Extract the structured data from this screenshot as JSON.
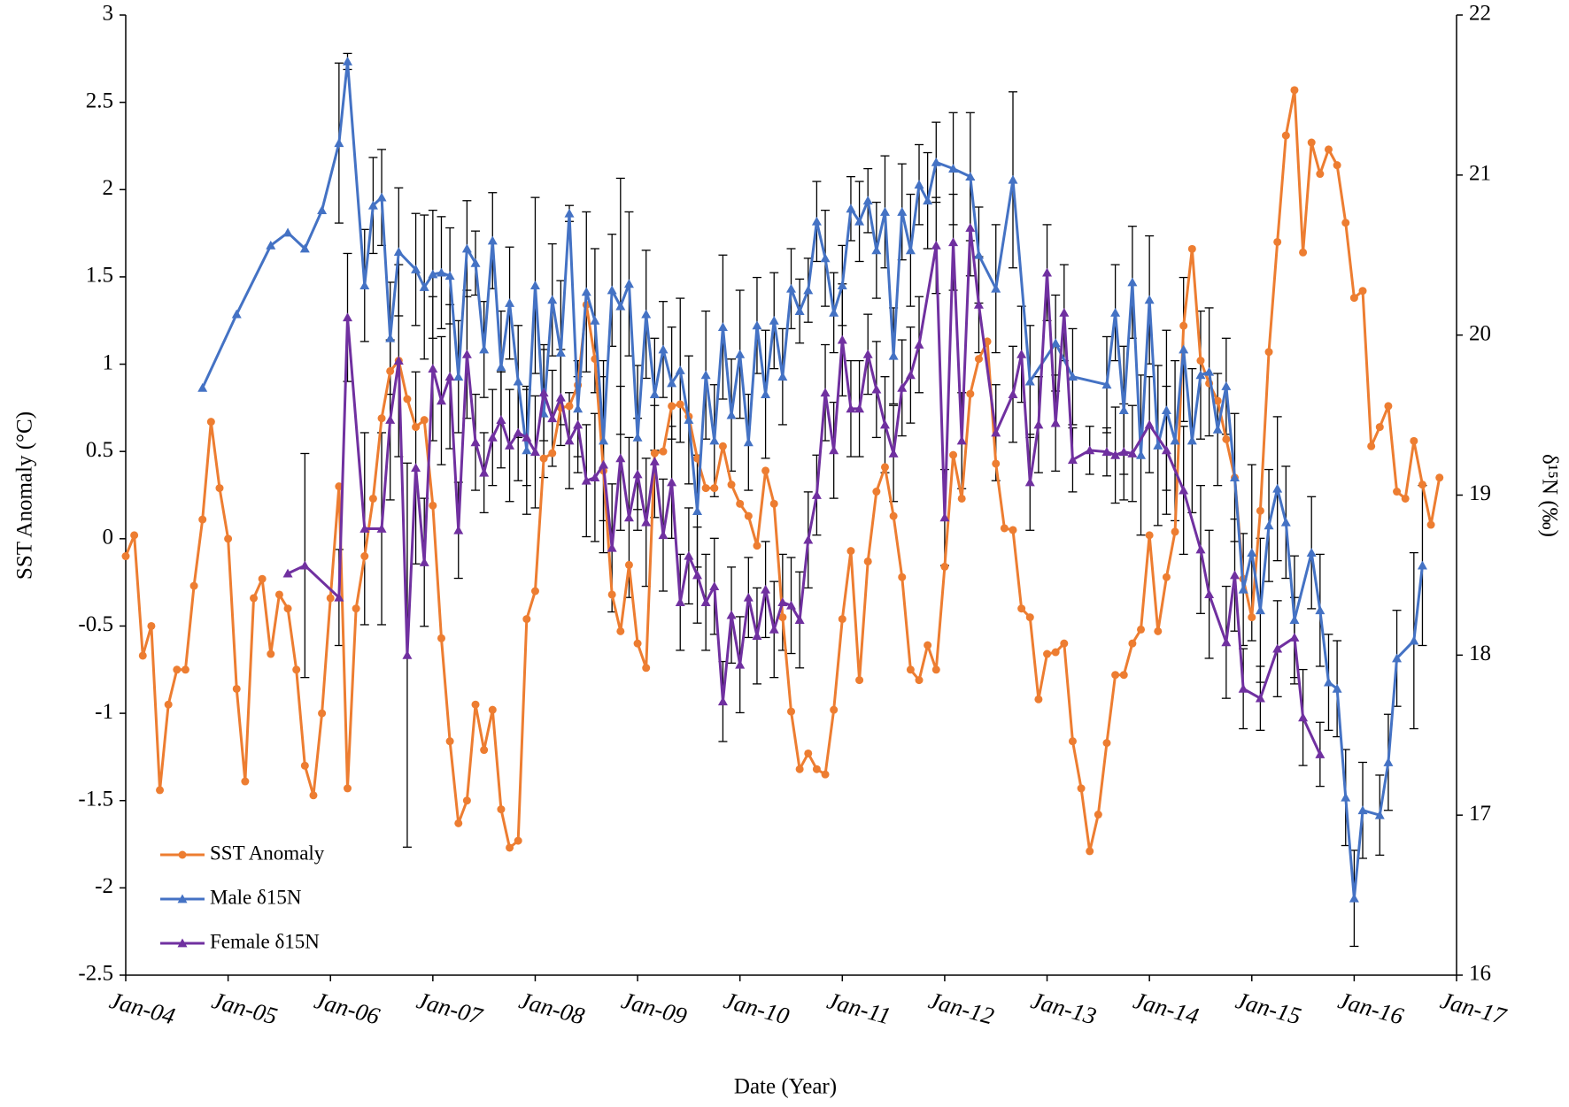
{
  "chart_data": {
    "type": "line",
    "x_label": "Date (Year)",
    "y_label": "SST Anomaly (°C)",
    "y2_label": "δ¹⁵N (‰)",
    "xlim": [
      "2004-01",
      "2017-01"
    ],
    "xticks": [
      {
        "value": "2004-01",
        "label": "Jan-04"
      },
      {
        "value": "2005-01",
        "label": "Jan-05"
      },
      {
        "value": "2006-01",
        "label": "Jan-06"
      },
      {
        "value": "2007-01",
        "label": "Jan-07"
      },
      {
        "value": "2008-01",
        "label": "Jan-08"
      },
      {
        "value": "2009-01",
        "label": "Jan-09"
      },
      {
        "value": "2010-01",
        "label": "Jan-10"
      },
      {
        "value": "2011-01",
        "label": "Jan-11"
      },
      {
        "value": "2012-01",
        "label": "Jan-12"
      },
      {
        "value": "2013-01",
        "label": "Jan-13"
      },
      {
        "value": "2014-01",
        "label": "Jan-14"
      },
      {
        "value": "2015-01",
        "label": "Jan-15"
      },
      {
        "value": "2016-01",
        "label": "Jan-16"
      },
      {
        "value": "2017-01",
        "label": "Jan-17"
      }
    ],
    "ylim": [
      -2.5,
      3
    ],
    "yticks": [
      -2.5,
      -2,
      -1.5,
      -1,
      -0.5,
      0,
      0.5,
      1,
      1.5,
      2,
      2.5,
      3
    ],
    "y2lim": [
      16,
      22
    ],
    "y2ticks": [
      16,
      17,
      18,
      19,
      20,
      21,
      22
    ],
    "grid": false,
    "legend": "lower left",
    "series": [
      {
        "name": "SST Anomaly",
        "color": "#ed7d31",
        "marker": "circle",
        "x": [
          "2004-01",
          "2004-02",
          "2004-03",
          "2004-04",
          "2004-05",
          "2004-06",
          "2004-07",
          "2004-08",
          "2004-09",
          "2004-10",
          "2004-11",
          "2004-12",
          "2005-01",
          "2005-02",
          "2005-03",
          "2005-04",
          "2005-05",
          "2005-06",
          "2005-07",
          "2005-08",
          "2005-09",
          "2005-10",
          "2005-11",
          "2005-12",
          "2006-01",
          "2006-02",
          "2006-03",
          "2006-04",
          "2006-05",
          "2006-06",
          "2006-07",
          "2006-08",
          "2006-09",
          "2006-10",
          "2006-11",
          "2006-12",
          "2007-01",
          "2007-02",
          "2007-03",
          "2007-04",
          "2007-05",
          "2007-06",
          "2007-07",
          "2007-08",
          "2007-09",
          "2007-10",
          "2007-11",
          "2007-12",
          "2008-01",
          "2008-02",
          "2008-03",
          "2008-04",
          "2008-05",
          "2008-06",
          "2008-07",
          "2008-08",
          "2008-09",
          "2008-10",
          "2008-11",
          "2008-12",
          "2009-01",
          "2009-02",
          "2009-03",
          "2009-04",
          "2009-05",
          "2009-06",
          "2009-07",
          "2009-08",
          "2009-09",
          "2009-10",
          "2009-11",
          "2009-12",
          "2010-01",
          "2010-02",
          "2010-03",
          "2010-04",
          "2010-05",
          "2010-06",
          "2010-07",
          "2010-08",
          "2010-09",
          "2010-10",
          "2010-11",
          "2010-12",
          "2011-01",
          "2011-02",
          "2011-03",
          "2011-04",
          "2011-05",
          "2011-06",
          "2011-07",
          "2011-08",
          "2011-09",
          "2011-10",
          "2011-11",
          "2011-12",
          "2012-01",
          "2012-02",
          "2012-03",
          "2012-04",
          "2012-05",
          "2012-06",
          "2012-07",
          "2012-08",
          "2012-09",
          "2012-10",
          "2012-11",
          "2012-12",
          "2013-01",
          "2013-02",
          "2013-03",
          "2013-04",
          "2013-05",
          "2013-06",
          "2013-07",
          "2013-08",
          "2013-09",
          "2013-10",
          "2013-11",
          "2013-12",
          "2014-01",
          "2014-02",
          "2014-03",
          "2014-04",
          "2014-05",
          "2014-06",
          "2014-07",
          "2014-08",
          "2014-09",
          "2014-10",
          "2014-11",
          "2014-12",
          "2015-01",
          "2015-02",
          "2015-03",
          "2015-04",
          "2015-05",
          "2015-06",
          "2015-07",
          "2015-08",
          "2015-09",
          "2015-10",
          "2015-11",
          "2015-12",
          "2016-01",
          "2016-02",
          "2016-03",
          "2016-04",
          "2016-05",
          "2016-06",
          "2016-07",
          "2016-08",
          "2016-09",
          "2016-10",
          "2016-11"
        ],
        "values": [
          -0.1,
          0.02,
          -0.67,
          -0.5,
          -1.44,
          -0.95,
          -0.75,
          -0.75,
          -0.27,
          0.11,
          0.67,
          0.29,
          0.0,
          -0.86,
          -1.39,
          -0.34,
          -0.23,
          -0.66,
          -0.32,
          -0.4,
          -0.75,
          -1.3,
          -1.47,
          -1.0,
          -0.34,
          0.3,
          -1.43,
          -0.4,
          -0.1,
          0.23,
          0.69,
          0.96,
          1.02,
          0.8,
          0.64,
          0.68,
          0.19,
          -0.57,
          -1.16,
          -1.63,
          -1.5,
          -0.95,
          -1.21,
          -0.98,
          -1.55,
          -1.77,
          -1.73,
          -0.46,
          -0.3,
          0.46,
          0.49,
          0.75,
          0.76,
          0.88,
          1.34,
          1.03,
          0.39,
          -0.32,
          -0.53,
          -0.15,
          -0.6,
          -0.74,
          0.49,
          0.5,
          0.76,
          0.77,
          0.7,
          0.46,
          0.29,
          0.29,
          0.53,
          0.31,
          0.2,
          0.13,
          -0.04,
          0.39,
          0.2,
          -0.45,
          -0.99,
          -1.32,
          -1.23,
          -1.32,
          -1.35,
          -0.98,
          -0.46,
          -0.07,
          -0.81,
          -0.13,
          0.27,
          0.41,
          0.13,
          -0.22,
          -0.75,
          -0.81,
          -0.61,
          -0.75,
          -0.16,
          0.48,
          0.23,
          0.83,
          1.03,
          1.13,
          0.43,
          0.06,
          0.05,
          -0.4,
          -0.45,
          -0.92,
          -0.66,
          -0.65,
          -0.6,
          -1.16,
          -1.43,
          -1.79,
          -1.58,
          -1.17,
          -0.78,
          -0.78,
          -0.6,
          -0.52,
          0.02,
          -0.53,
          -0.22,
          0.04,
          1.22,
          1.66,
          1.02,
          0.89,
          0.79,
          0.57,
          0.35,
          -0.23,
          -0.45,
          0.16,
          1.07,
          1.7,
          2.31,
          2.57,
          1.64,
          2.27,
          2.09,
          2.23,
          2.14,
          1.81,
          1.38,
          1.42,
          0.53,
          0.64,
          0.76,
          0.27,
          0.23,
          0.56,
          0.31,
          0.08,
          0.35
        ]
      },
      {
        "name": "Male δ15N",
        "color": "#4472c4",
        "marker": "triangle",
        "axis": "y2",
        "x": [
          "2004-10",
          "2005-02",
          "2005-06",
          "2005-08",
          "2005-10",
          "2005-12",
          "2006-02",
          "2006-03",
          "2006-05",
          "2006-06",
          "2006-07",
          "2006-08",
          "2006-09",
          "2006-11",
          "2006-12",
          "2007-01",
          "2007-02",
          "2007-03",
          "2007-04",
          "2007-05",
          "2007-06",
          "2007-07",
          "2007-08",
          "2007-09",
          "2007-10",
          "2007-11",
          "2007-12",
          "2008-01",
          "2008-02",
          "2008-03",
          "2008-04",
          "2008-05",
          "2008-06",
          "2008-07",
          "2008-08",
          "2008-09",
          "2008-10",
          "2008-11",
          "2008-12",
          "2009-01",
          "2009-02",
          "2009-03",
          "2009-04",
          "2009-05",
          "2009-06",
          "2009-07",
          "2009-08",
          "2009-09",
          "2009-10",
          "2009-11",
          "2009-12",
          "2010-01",
          "2010-02",
          "2010-03",
          "2010-04",
          "2010-05",
          "2010-06",
          "2010-07",
          "2010-08",
          "2010-09",
          "2010-10",
          "2010-11",
          "2010-12",
          "2011-01",
          "2011-02",
          "2011-03",
          "2011-04",
          "2011-05",
          "2011-06",
          "2011-07",
          "2011-08",
          "2011-09",
          "2011-10",
          "2011-11",
          "2011-12",
          "2012-02",
          "2012-04",
          "2012-05",
          "2012-07",
          "2012-09",
          "2012-11",
          "2013-02",
          "2013-04",
          "2013-08",
          "2013-09",
          "2013-10",
          "2013-11",
          "2013-12",
          "2014-01",
          "2014-02",
          "2014-03",
          "2014-04",
          "2014-05",
          "2014-06",
          "2014-07",
          "2014-08",
          "2014-09",
          "2014-10",
          "2014-11",
          "2014-12",
          "2015-01",
          "2015-02",
          "2015-03",
          "2015-04",
          "2015-05",
          "2015-06",
          "2015-08",
          "2015-09",
          "2015-10",
          "2015-11",
          "2015-12",
          "2016-01",
          "2016-02",
          "2016-04",
          "2016-05",
          "2016-06",
          "2016-08",
          "2016-09"
        ],
        "values": [
          19.67,
          20.13,
          20.56,
          20.64,
          20.54,
          20.78,
          21.2,
          21.71,
          20.31,
          20.81,
          20.86,
          19.98,
          20.52,
          20.41,
          20.3,
          20.38,
          20.39,
          20.37,
          19.74,
          20.54,
          20.45,
          19.91,
          20.59,
          19.8,
          20.2,
          19.71,
          19.28,
          20.31,
          19.51,
          20.22,
          19.89,
          20.76,
          19.54,
          20.27,
          20.09,
          19.34,
          20.28,
          20.18,
          20.32,
          19.36,
          20.13,
          19.63,
          19.91,
          19.7,
          19.78,
          19.47,
          18.9,
          19.75,
          19.34,
          20.05,
          19.5,
          19.88,
          19.33,
          20.06,
          19.63,
          20.09,
          19.74,
          20.29,
          20.15,
          20.28,
          20.71,
          20.48,
          20.14,
          20.31,
          20.79,
          20.71,
          20.84,
          20.53,
          20.77,
          19.87,
          20.77,
          20.53,
          20.94,
          20.84,
          21.08,
          21.04,
          20.99,
          20.5,
          20.29,
          20.97,
          19.71,
          19.95,
          19.74,
          19.69,
          20.14,
          19.53,
          20.33,
          19.25,
          20.22,
          19.31,
          19.53,
          19.34,
          19.91,
          19.34,
          19.75,
          19.77,
          19.41,
          19.68,
          19.11,
          18.41,
          18.64,
          18.28,
          18.81,
          19.04,
          18.83,
          18.22,
          18.64,
          18.28,
          17.83,
          17.79,
          17.11,
          16.48,
          17.03,
          17.0,
          17.33,
          17.98,
          18.09,
          18.56
        ],
        "errors": [
          null,
          null,
          null,
          null,
          null,
          null,
          0.5,
          0.05,
          0.35,
          0.3,
          0.3,
          0.35,
          0.4,
          0.35,
          0.45,
          0.4,
          0.35,
          0.3,
          0.35,
          0.3,
          0.2,
          0.3,
          0.3,
          0.35,
          0.35,
          0.35,
          0.4,
          0.55,
          0.4,
          0.35,
          0.45,
          0.05,
          0.3,
          0.5,
          0.45,
          0.5,
          0.35,
          0.8,
          0.45,
          0.45,
          0.4,
          0.35,
          0.3,
          0.35,
          0.45,
          0.4,
          0.35,
          0.4,
          0.35,
          0.45,
          0.35,
          0.4,
          0.3,
          0.3,
          0.4,
          0.3,
          0.3,
          0.25,
          0.2,
          0.2,
          0.25,
          0.3,
          0.25,
          0.25,
          0.2,
          0.25,
          0.2,
          0.3,
          0.35,
          0.3,
          0.3,
          0.35,
          0.25,
          0.3,
          0.25,
          0.35,
          0.4,
          0.3,
          0.4,
          0.55,
          0.35,
          0.3,
          0.3,
          0.3,
          0.3,
          0.4,
          0.35,
          0.5,
          0.4,
          0.5,
          0.5,
          0.5,
          0.45,
          0.45,
          0.4,
          0.4,
          0.35,
          0.3,
          0.4,
          0.35,
          0.55,
          0.45,
          0.35,
          0.45,
          0.35,
          0.4,
          0.35,
          0.35,
          0.3,
          0.3,
          0.3,
          0.3,
          0.3,
          0.25,
          0.3,
          0.3,
          0.55,
          0.5
        ]
      },
      {
        "name": "Female δ15N",
        "color": "#7030a0",
        "marker": "triangle",
        "axis": "y2",
        "x": [
          "2005-08",
          "2005-10",
          "2006-02",
          "2006-03",
          "2006-05",
          "2006-07",
          "2006-08",
          "2006-09",
          "2006-10",
          "2006-11",
          "2006-12",
          "2007-01",
          "2007-02",
          "2007-03",
          "2007-04",
          "2007-05",
          "2007-06",
          "2007-07",
          "2007-08",
          "2007-09",
          "2007-10",
          "2007-11",
          "2007-12",
          "2008-01",
          "2008-02",
          "2008-03",
          "2008-04",
          "2008-05",
          "2008-06",
          "2008-07",
          "2008-08",
          "2008-09",
          "2008-10",
          "2008-11",
          "2008-12",
          "2009-01",
          "2009-02",
          "2009-03",
          "2009-04",
          "2009-05",
          "2009-06",
          "2009-07",
          "2009-08",
          "2009-09",
          "2009-10",
          "2009-11",
          "2009-12",
          "2010-01",
          "2010-02",
          "2010-03",
          "2010-04",
          "2010-05",
          "2010-06",
          "2010-07",
          "2010-08",
          "2010-09",
          "2010-10",
          "2010-11",
          "2010-12",
          "2011-01",
          "2011-02",
          "2011-03",
          "2011-04",
          "2011-05",
          "2011-06",
          "2011-07",
          "2011-08",
          "2011-09",
          "2011-10",
          "2011-12",
          "2012-01",
          "2012-02",
          "2012-03",
          "2012-04",
          "2012-05",
          "2012-07",
          "2012-09",
          "2012-10",
          "2012-11",
          "2012-12",
          "2013-01",
          "2013-02",
          "2013-03",
          "2013-04",
          "2013-06",
          "2013-08",
          "2013-09",
          "2013-10",
          "2013-11",
          "2014-01",
          "2014-03",
          "2014-05",
          "2014-07",
          "2014-08",
          "2014-10",
          "2014-11",
          "2014-12",
          "2015-02",
          "2015-04",
          "2015-06",
          "2015-07",
          "2015-09"
        ],
        "values": [
          18.51,
          18.56,
          18.36,
          20.11,
          18.79,
          18.79,
          19.47,
          19.84,
          18.0,
          19.17,
          18.58,
          19.79,
          19.59,
          19.74,
          18.78,
          19.88,
          19.33,
          19.14,
          19.36,
          19.47,
          19.31,
          19.39,
          19.36,
          19.27,
          19.64,
          19.48,
          19.61,
          19.34,
          19.44,
          19.09,
          19.11,
          19.19,
          18.67,
          19.23,
          18.86,
          19.13,
          18.83,
          19.21,
          18.75,
          19.08,
          18.33,
          18.62,
          18.5,
          18.33,
          18.43,
          17.71,
          18.25,
          17.94,
          18.36,
          18.12,
          18.41,
          18.16,
          18.33,
          18.31,
          18.22,
          18.72,
          19.0,
          19.64,
          19.28,
          19.97,
          19.54,
          19.54,
          19.88,
          19.66,
          19.44,
          19.26,
          19.67,
          19.75,
          19.94,
          20.56,
          18.86,
          20.58,
          19.34,
          20.67,
          20.19,
          19.39,
          19.63,
          19.88,
          19.08,
          19.44,
          20.39,
          19.45,
          20.14,
          19.22,
          19.28,
          19.27,
          19.25,
          19.27,
          19.26,
          19.44,
          19.28,
          19.03,
          18.66,
          18.38,
          18.08,
          18.5,
          17.79,
          17.73,
          18.04,
          18.11,
          17.61,
          17.38
        ],
        "errors": [
          null,
          0.7,
          0.3,
          0.4,
          0.6,
          0.6,
          0.5,
          0.6,
          1.2,
          0.6,
          0.4,
          0.45,
          0.4,
          0.45,
          0.3,
          0.4,
          0.3,
          0.25,
          0.3,
          0.3,
          0.35,
          0.3,
          0.3,
          0.35,
          0.3,
          0.3,
          0.3,
          0.3,
          0.3,
          0.35,
          0.4,
          0.55,
          0.4,
          0.45,
          0.5,
          0.35,
          0.4,
          0.35,
          0.35,
          0.35,
          0.3,
          0.3,
          0.3,
          0.3,
          0.3,
          0.25,
          0.3,
          0.3,
          0.25,
          0.3,
          0.3,
          0.3,
          0.3,
          0.3,
          0.3,
          0.3,
          0.25,
          0.3,
          0.3,
          0.35,
          0.3,
          0.3,
          0.25,
          0.3,
          0.3,
          0.3,
          0.3,
          0.3,
          0.3,
          0.3,
          0.3,
          0.3,
          0.3,
          0.3,
          0.3,
          0.3,
          0.3,
          0.3,
          0.3,
          0.3,
          0.3,
          0.3,
          0.3,
          0.2,
          0.15,
          0.15,
          0.3,
          0.3,
          0.3,
          0.3,
          0.4,
          0.4,
          0.4,
          0.4,
          0.35,
          0.35,
          0.25,
          0.2,
          0.3,
          0.25,
          0.3,
          0.2
        ]
      }
    ]
  }
}
